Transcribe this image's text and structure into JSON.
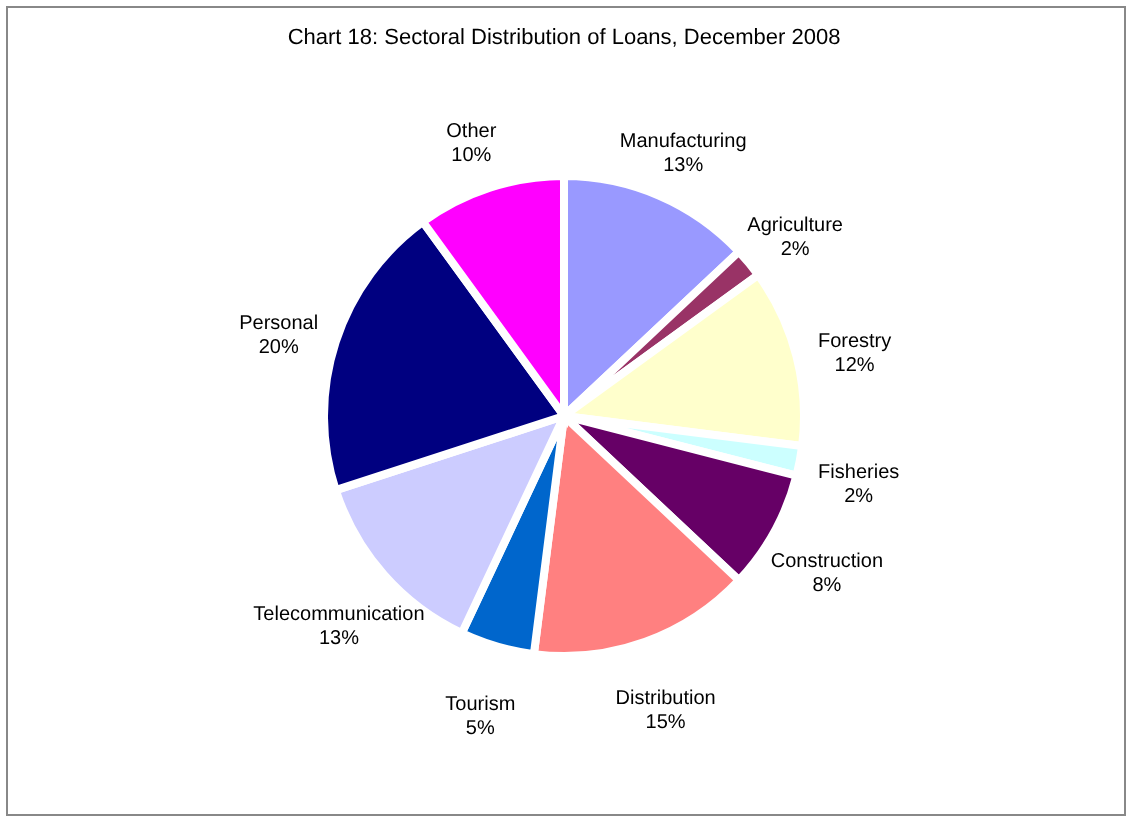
{
  "chart_data": {
    "type": "pie",
    "title": "Chart 18: Sectoral Distribution of Loans, December 2008",
    "categories": [
      "Manufacturing",
      "Agriculture",
      "Forestry",
      "Fisheries",
      "Construction",
      "Distribution",
      "Tourism",
      "Telecommunication",
      "Personal",
      "Other"
    ],
    "values": [
      13,
      2,
      12,
      2,
      8,
      15,
      5,
      13,
      20,
      10
    ],
    "value_labels": [
      "13%",
      "2%",
      "12%",
      "2%",
      "8%",
      "15%",
      "5%",
      "13%",
      "20%",
      "10%"
    ],
    "colors": [
      "#9999ff",
      "#993366",
      "#ffffcc",
      "#ccffff",
      "#660066",
      "#ff8080",
      "#0066cc",
      "#ccccff",
      "#000080",
      "#ff00ff"
    ],
    "legend": false
  }
}
